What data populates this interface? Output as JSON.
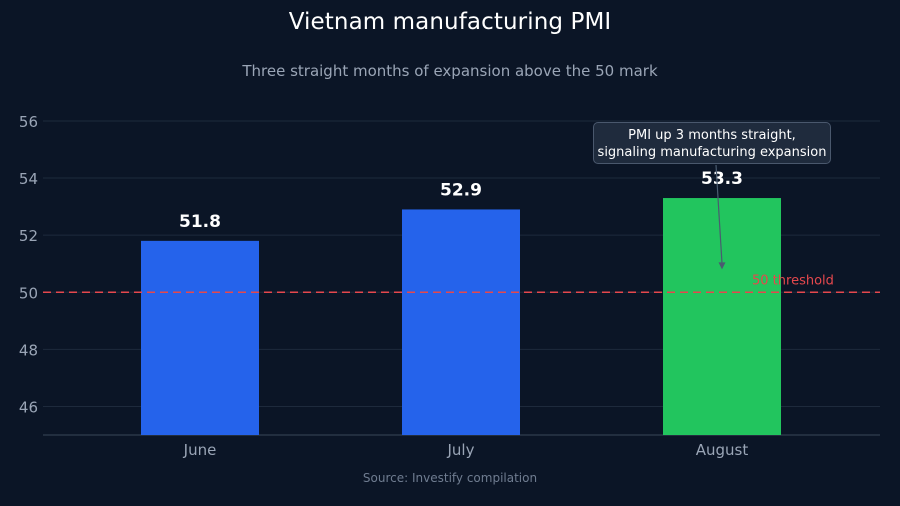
{
  "title": "Vietnam manufacturing PMI",
  "subtitle": "Three straight months of expansion above the 50 mark",
  "source": "Source: Investify compilation",
  "colors": {
    "background": "#0b1526",
    "bar_default": "#2563eb",
    "bar_highlight": "#22c55e",
    "threshold": "#e5484d",
    "grid": "#1e2a3c"
  },
  "chart_data": {
    "type": "bar",
    "categories": [
      "June",
      "July",
      "August"
    ],
    "values": [
      51.8,
      52.9,
      53.3
    ],
    "data_labels": [
      "51.8",
      "52.9",
      "53.3"
    ],
    "highlight_index": 2,
    "ylim": [
      45,
      57
    ],
    "yticks": [
      46,
      48,
      50,
      52,
      54,
      56
    ],
    "grid": true,
    "reference_line": {
      "value": 50,
      "label": "50 threshold",
      "style": "dashed"
    },
    "annotation": {
      "lines": [
        "PMI up 3 months straight,",
        "signaling manufacturing expansion"
      ],
      "target_category": "August",
      "target_value": 50.8
    }
  }
}
